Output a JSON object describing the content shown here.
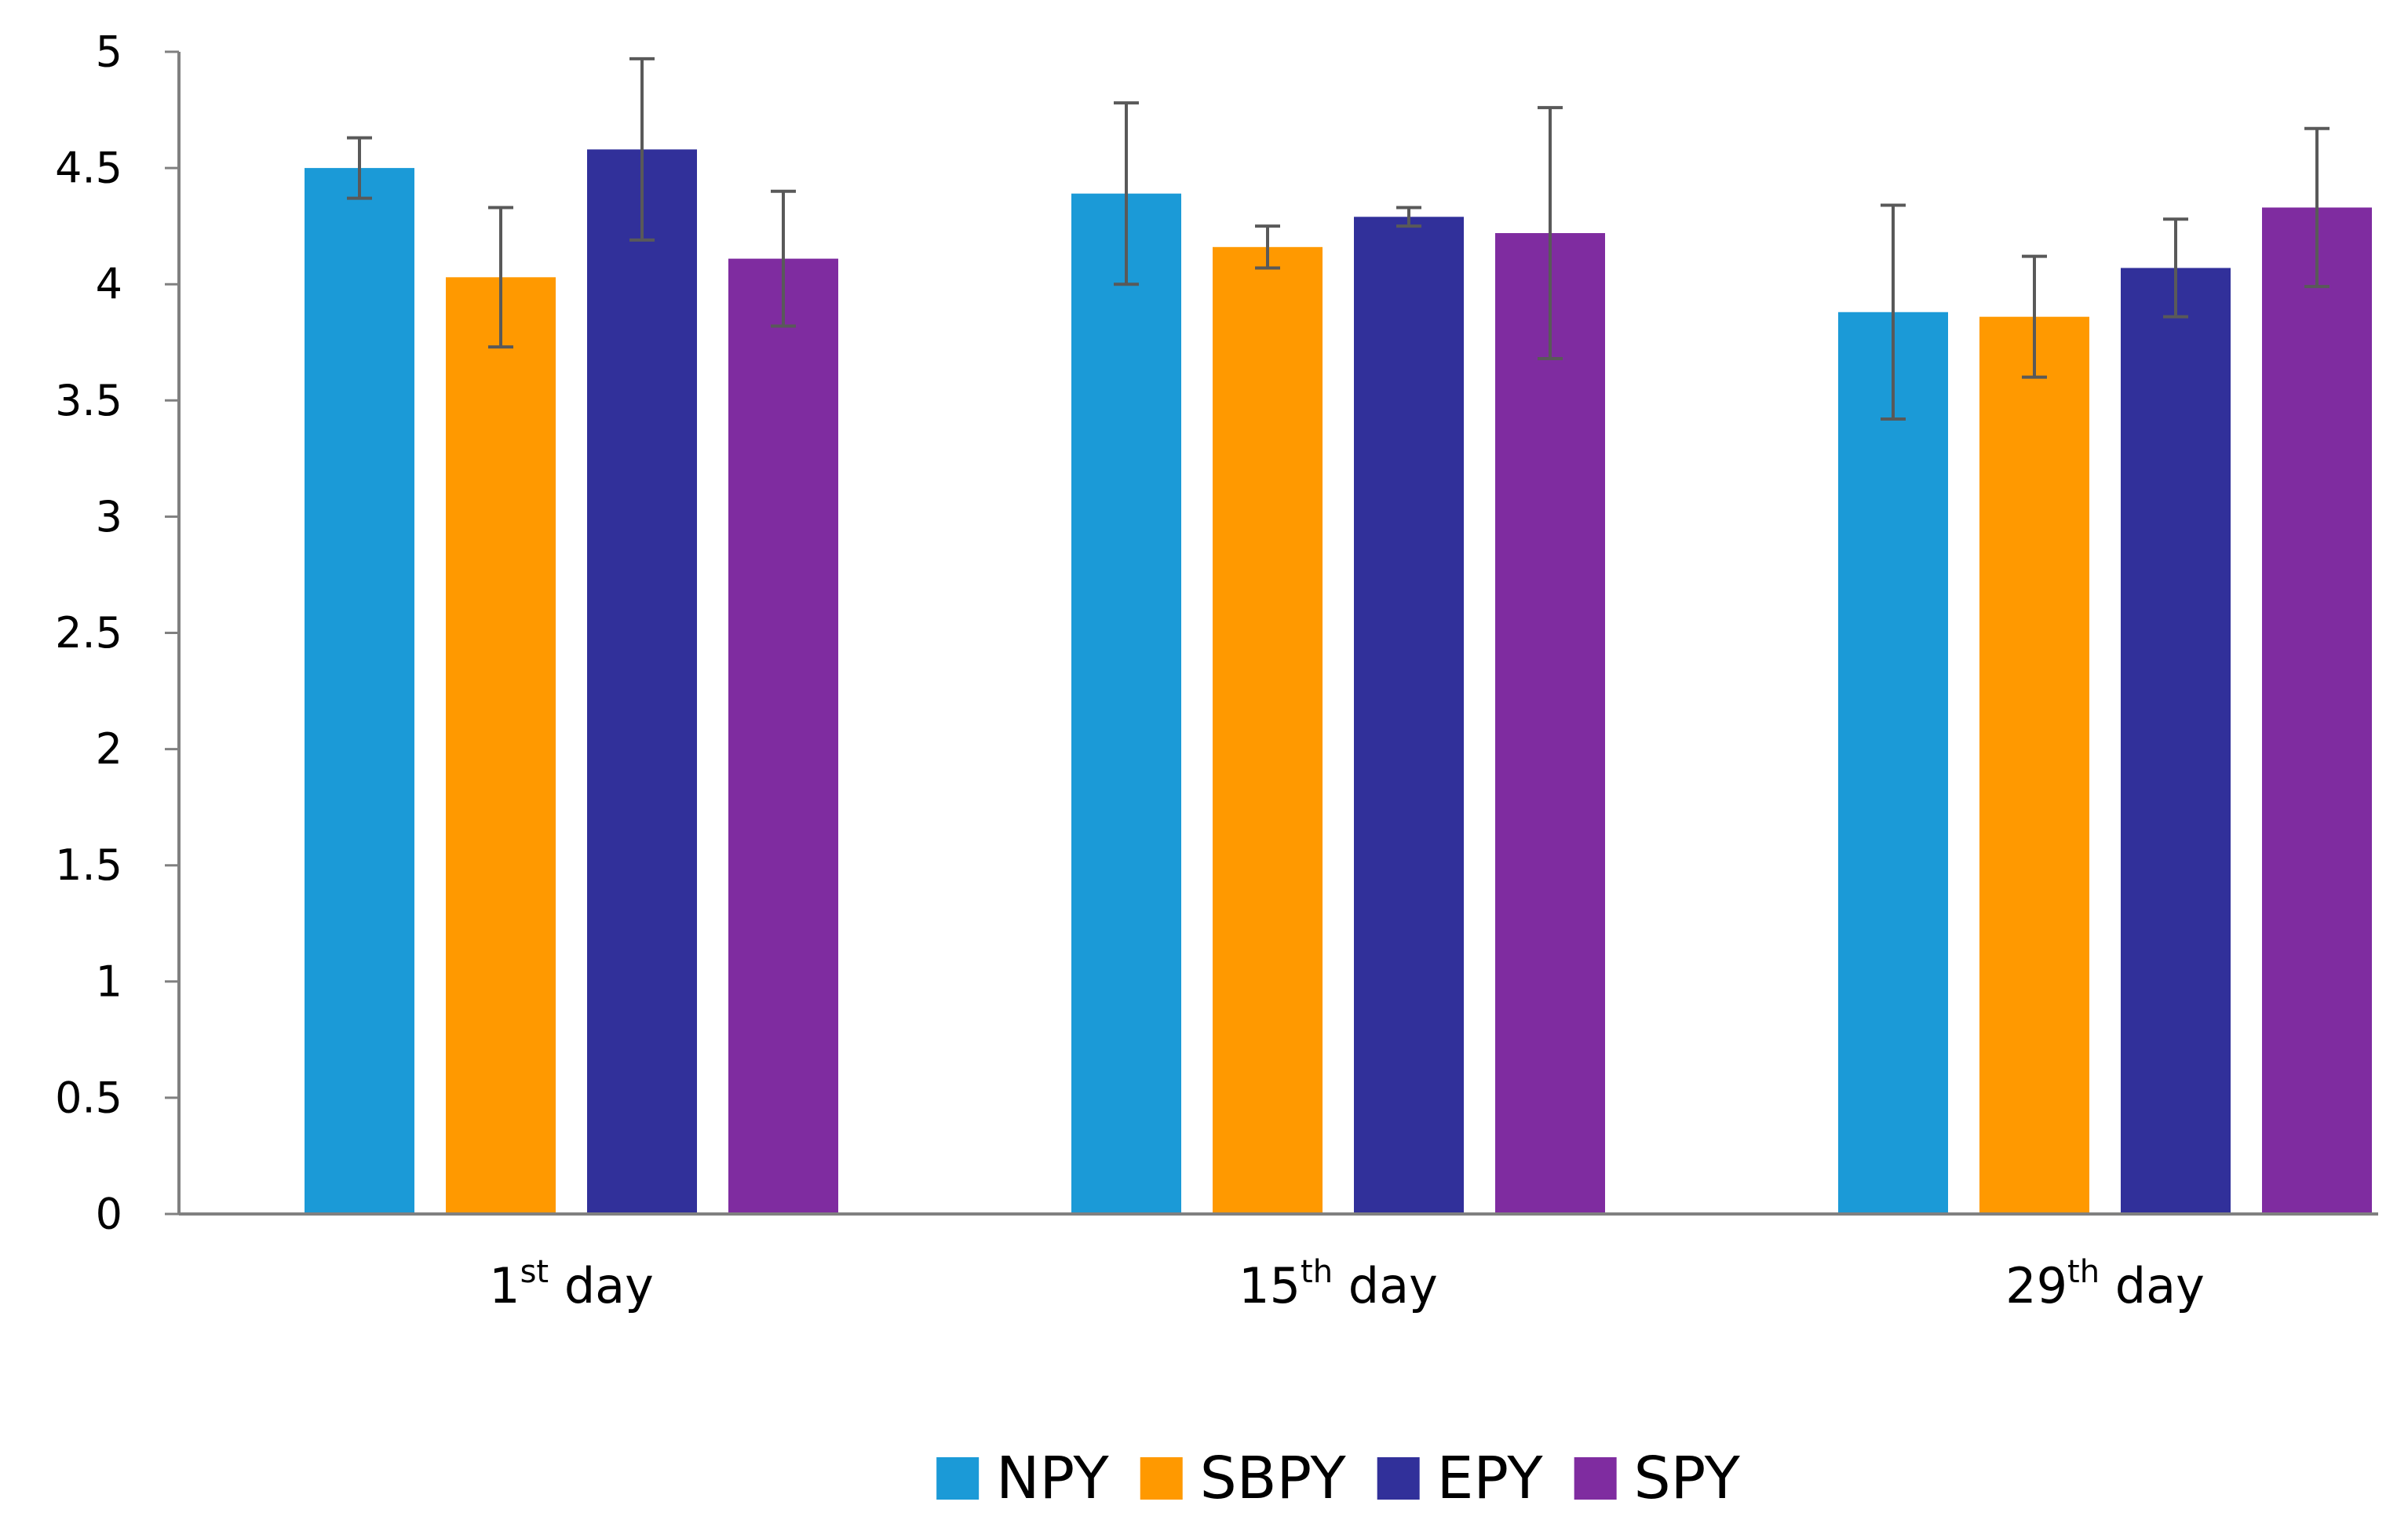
{
  "chart_data": {
    "type": "bar",
    "title": "",
    "xlabel": "",
    "ylabel": "",
    "ylim": [
      0,
      5
    ],
    "yticks": [
      "0",
      "0.5",
      "1",
      "1.5",
      "2",
      "2.5",
      "3",
      "3.5",
      "4",
      "4.5",
      "5"
    ],
    "grid": false,
    "legend_position": "bottom",
    "categories": [
      {
        "base": "1",
        "sup": "st",
        "suffix": " day"
      },
      {
        "base": "15",
        "sup": "th",
        "suffix": " day"
      },
      {
        "base": "29",
        "sup": "th",
        "suffix": " day"
      }
    ],
    "series": [
      {
        "name": "NPY",
        "color": "#1B9AD7",
        "values": [
          4.5,
          4.39,
          3.88
        ],
        "errors": [
          0.13,
          0.39,
          0.46
        ]
      },
      {
        "name": "SBPY",
        "color": "#FF9900",
        "values": [
          4.03,
          4.16,
          3.86
        ],
        "errors": [
          0.3,
          0.09,
          0.26
        ]
      },
      {
        "name": "EPY",
        "color": "#31309A",
        "values": [
          4.58,
          4.29,
          4.07
        ],
        "errors": [
          0.39,
          0.04,
          0.21
        ]
      },
      {
        "name": "SPY",
        "color": "#7F2CA0",
        "values": [
          4.11,
          4.22,
          4.33
        ],
        "errors": [
          0.29,
          0.54,
          0.34
        ]
      }
    ],
    "error_bar_color": "#595959",
    "axis_color": "#808080"
  }
}
